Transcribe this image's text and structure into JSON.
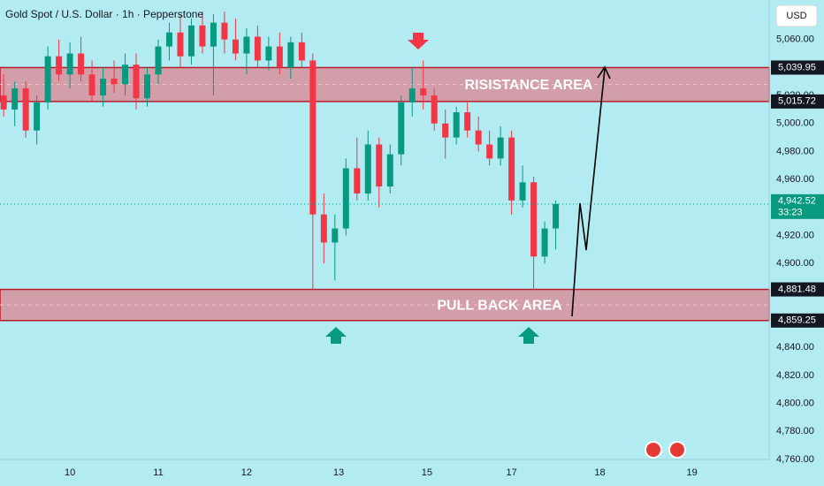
{
  "chart_data": {
    "type": "candlestick",
    "title": "Gold Spot / U.S. Dollar · 1h · Pepperstone",
    "currency": "USD",
    "xlim": [
      0,
      209
    ],
    "ylim": [
      4760,
      5080
    ],
    "xticks": [
      {
        "value": 19,
        "label": "10"
      },
      {
        "value": 43,
        "label": "11"
      },
      {
        "value": 67,
        "label": "12"
      },
      {
        "value": 92,
        "label": "13"
      },
      {
        "value": 116,
        "label": "15"
      },
      {
        "value": 139,
        "label": "17"
      },
      {
        "value": 163,
        "label": "18"
      },
      {
        "value": 188,
        "label": "19"
      }
    ],
    "yticks": [
      {
        "value": 5060,
        "label": "5,060.00"
      },
      {
        "value": 5020,
        "label": "5,020.00"
      },
      {
        "value": 5000,
        "label": "5,000.00"
      },
      {
        "value": 4980,
        "label": "4,980.00"
      },
      {
        "value": 4960,
        "label": "4,960.00"
      },
      {
        "value": 4920,
        "label": "4,920.00"
      },
      {
        "value": 4900,
        "label": "4,900.00"
      },
      {
        "value": 4840,
        "label": "4,840.00"
      },
      {
        "value": 4820,
        "label": "4,820.00"
      },
      {
        "value": 4800,
        "label": "4,800.00"
      },
      {
        "value": 4780,
        "label": "4,780.00"
      },
      {
        "value": 4760,
        "label": "4,760.00"
      }
    ],
    "grid": false,
    "up_color": "#089981",
    "down_color": "#f23645",
    "x": [
      1,
      4,
      7,
      10,
      13,
      16,
      19,
      22,
      25,
      28,
      31,
      34,
      37,
      40,
      43,
      46,
      49,
      52,
      55,
      58,
      61,
      64,
      67,
      70,
      73,
      76,
      79,
      82,
      85,
      88,
      91,
      94,
      97,
      100,
      103,
      106,
      109,
      112,
      115,
      118,
      121,
      124,
      127,
      130,
      133,
      136,
      139,
      142,
      145,
      148,
      151
    ],
    "open": [
      5020,
      5010,
      5025,
      4995,
      5015,
      5048,
      5035,
      5050,
      5035,
      5020,
      5032,
      5028,
      5042,
      5018,
      5035,
      5055,
      5065,
      5048,
      5070,
      5055,
      5072,
      5060,
      5050,
      5062,
      5045,
      5055,
      5040,
      5058,
      5045,
      4935,
      4915,
      4925,
      4968,
      4950,
      4985,
      4955,
      4978,
      5015,
      5025,
      5020,
      5000,
      4990,
      5008,
      4995,
      4985,
      4975,
      4990,
      4945,
      4958,
      4905,
      4925
    ],
    "high": [
      5035,
      5030,
      5030,
      5020,
      5055,
      5060,
      5058,
      5062,
      5045,
      5040,
      5045,
      5050,
      5050,
      5040,
      5060,
      5072,
      5078,
      5075,
      5080,
      5078,
      5080,
      5075,
      5068,
      5070,
      5062,
      5065,
      5062,
      5065,
      5050,
      4950,
      4935,
      4975,
      4990,
      4995,
      4990,
      4985,
      5020,
      5040,
      5045,
      5025,
      5010,
      5012,
      5015,
      5005,
      4995,
      4998,
      4995,
      4970,
      4962,
      4930,
      4945
    ],
    "low": [
      5005,
      4998,
      4990,
      4985,
      5010,
      5030,
      5025,
      5030,
      5015,
      5012,
      5022,
      5020,
      5010,
      5012,
      5028,
      5045,
      5040,
      5042,
      5050,
      5020,
      5050,
      5045,
      5035,
      5040,
      5038,
      5035,
      5032,
      5040,
      4881,
      4900,
      4888,
      4920,
      4945,
      4945,
      4940,
      4950,
      4970,
      5005,
      5010,
      4995,
      4975,
      4985,
      4990,
      4980,
      4970,
      4970,
      4935,
      4940,
      4881,
      4900,
      4910
    ],
    "close": [
      5010,
      5025,
      4995,
      5015,
      5048,
      5035,
      5050,
      5035,
      5020,
      5032,
      5028,
      5042,
      5018,
      5035,
      5055,
      5065,
      5048,
      5070,
      5055,
      5072,
      5060,
      5050,
      5062,
      5045,
      5055,
      5040,
      5058,
      5045,
      4935,
      4915,
      4925,
      4968,
      4950,
      4985,
      4955,
      4978,
      5015,
      5025,
      5020,
      5000,
      4990,
      5008,
      4995,
      4985,
      4975,
      4990,
      4945,
      4958,
      4905,
      4925,
      4942.52
    ],
    "zones": [
      {
        "label": "RISISTANCE AREA",
        "top": {
          "value": 5039.95,
          "label": "5,039.95"
        },
        "bottom": {
          "value": 5015.72,
          "label": "5,015.72"
        }
      },
      {
        "label": "PULL BACK AREA",
        "top": {
          "value": 4881.48,
          "label": "4,881.48"
        },
        "bottom": {
          "value": 4859.25,
          "label": "4,859.25"
        }
      }
    ],
    "current_price": {
      "value": 4942.52,
      "label": "4,942.52",
      "countdown": "33:23"
    }
  }
}
